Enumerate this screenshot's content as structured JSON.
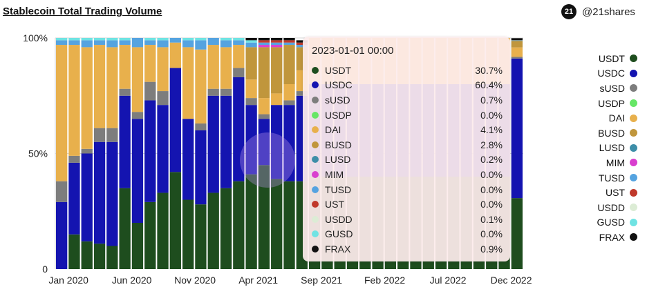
{
  "header": {
    "title": "Stablecoin Total Trading Volume",
    "brand_logo_text": "21",
    "brand_handle": "@21shares"
  },
  "tooltip": {
    "timestamp": "2023-01-01 00:00",
    "rows": [
      {
        "name": "USDT",
        "value": "30.7%"
      },
      {
        "name": "USDC",
        "value": "60.4%"
      },
      {
        "name": "sUSD",
        "value": "0.7%"
      },
      {
        "name": "USDP",
        "value": "0.0%"
      },
      {
        "name": "DAI",
        "value": "4.1%"
      },
      {
        "name": "BUSD",
        "value": "2.8%"
      },
      {
        "name": "LUSD",
        "value": "0.2%"
      },
      {
        "name": "MIM",
        "value": "0.0%"
      },
      {
        "name": "TUSD",
        "value": "0.0%"
      },
      {
        "name": "UST",
        "value": "0.0%"
      },
      {
        "name": "USDD",
        "value": "0.1%"
      },
      {
        "name": "GUSD",
        "value": "0.0%"
      },
      {
        "name": "FRAX",
        "value": "0.9%"
      }
    ]
  },
  "chart_data": {
    "type": "bar",
    "stacked": true,
    "normalized": true,
    "title": "Stablecoin Total Trading Volume",
    "y_tick_labels": [
      "0",
      "50%",
      "100%"
    ],
    "ylim": [
      0,
      100
    ],
    "x_tick_labels": [
      "Jan 2020",
      "Jun 2020",
      "Nov 2020",
      "Apr 2021",
      "Sep 2021",
      "Feb 2022",
      "Jul 2022",
      "Dec 2022"
    ],
    "categories": [
      "2020-01",
      "2020-02",
      "2020-03",
      "2020-04",
      "2020-05",
      "2020-06",
      "2020-07",
      "2020-08",
      "2020-09",
      "2020-10",
      "2020-11",
      "2020-12",
      "2021-01",
      "2021-02",
      "2021-03",
      "2021-04",
      "2021-05",
      "2021-06",
      "2021-07",
      "2021-08",
      "2021-09",
      "2021-10",
      "2021-11",
      "2021-12",
      "2022-01",
      "2022-02",
      "2022-03",
      "2022-04",
      "2022-05",
      "2022-06",
      "2022-07",
      "2022-08",
      "2022-09",
      "2022-10",
      "2022-11",
      "2022-12",
      "2023-01"
    ],
    "series": [
      {
        "name": "USDT",
        "color": "#1e4d1e",
        "values": [
          0,
          15,
          12,
          11,
          10,
          35,
          20,
          29,
          33,
          42,
          30,
          28,
          33,
          35,
          38,
          41,
          45,
          39,
          38,
          38,
          40,
          40,
          40,
          40,
          40,
          40,
          40,
          40,
          40,
          40,
          40,
          40,
          40,
          40,
          40,
          40,
          30.7
        ]
      },
      {
        "name": "USDC",
        "color": "#1414b0",
        "values": [
          29,
          31,
          38,
          44,
          45,
          40,
          45,
          44,
          38,
          45,
          35,
          32,
          42,
          40,
          45,
          30,
          20,
          32,
          33,
          37,
          40,
          40,
          40,
          40,
          40,
          40,
          40,
          40,
          40,
          40,
          40,
          40,
          40,
          40,
          40,
          40,
          60.4
        ]
      },
      {
        "name": "sUSD",
        "color": "#7d7d7d",
        "values": [
          9,
          3,
          2,
          6,
          6,
          3,
          3,
          8,
          6,
          0,
          0,
          3,
          3,
          3,
          4,
          3,
          2,
          0,
          2,
          2,
          0,
          0,
          0,
          0,
          0,
          0,
          0,
          0,
          0,
          0,
          0,
          0,
          0,
          0,
          0,
          0,
          0.7
        ]
      },
      {
        "name": "USDP",
        "color": "#66e666",
        "values": [
          0,
          0,
          0,
          0,
          0,
          0,
          0,
          0,
          0,
          0,
          0,
          0,
          0,
          0,
          0,
          0,
          0,
          0,
          0,
          0,
          0,
          0,
          0,
          0,
          0,
          0,
          0,
          0,
          0,
          0,
          0,
          0,
          0,
          0,
          0,
          0,
          0.0
        ]
      },
      {
        "name": "DAI",
        "color": "#e8b04c",
        "values": [
          59,
          48,
          44,
          36,
          35,
          19,
          28,
          16,
          19,
          11,
          31,
          32,
          19,
          18,
          10,
          8,
          7,
          5,
          7,
          9,
          20,
          20,
          20,
          20,
          20,
          20,
          20,
          20,
          20,
          20,
          20,
          20,
          20,
          20,
          20,
          20,
          4.1
        ]
      },
      {
        "name": "BUSD",
        "color": "#c0963c",
        "values": [
          0,
          0,
          0,
          0,
          0,
          0,
          0,
          0,
          0,
          0,
          0,
          0,
          0,
          0,
          0,
          14,
          22,
          20,
          17,
          10,
          0,
          0,
          0,
          0,
          0,
          0,
          0,
          0,
          0,
          0,
          0,
          0,
          0,
          0,
          0,
          0,
          2.8
        ]
      },
      {
        "name": "LUSD",
        "color": "#3d8ea8",
        "values": [
          0,
          0,
          0,
          0,
          0,
          0,
          0,
          0,
          0,
          0,
          0,
          0,
          0,
          0,
          0,
          0,
          0,
          0,
          0,
          0,
          0,
          0,
          0,
          0,
          0,
          0,
          0,
          0,
          0,
          0,
          0,
          0,
          0,
          0,
          0,
          0,
          0.2
        ]
      },
      {
        "name": "MIM",
        "color": "#d93fcf",
        "values": [
          0,
          0,
          0,
          0,
          0,
          0,
          0,
          0,
          0,
          0,
          0,
          0,
          0,
          0,
          0,
          0,
          1,
          1,
          0,
          0,
          0,
          0,
          0,
          0,
          0,
          0,
          0,
          0,
          0,
          0,
          0,
          0,
          0,
          0,
          0,
          0,
          0.0
        ]
      },
      {
        "name": "TUSD",
        "color": "#55a3e0",
        "values": [
          2,
          2,
          3,
          2,
          3,
          2,
          4,
          2,
          3,
          2,
          3,
          4,
          3,
          3,
          2,
          2,
          1,
          1,
          1,
          1,
          0,
          0,
          0,
          0,
          0,
          0,
          0,
          0,
          0,
          0,
          0,
          0,
          0,
          0,
          0,
          0,
          0.0
        ]
      },
      {
        "name": "UST",
        "color": "#c0392b",
        "values": [
          0,
          0,
          0,
          0,
          0,
          0,
          0,
          0,
          0,
          0,
          0,
          0,
          0,
          0,
          0,
          0,
          1,
          1,
          1,
          1,
          0,
          0,
          0,
          0,
          0,
          0,
          0,
          0,
          0,
          0,
          0,
          0,
          0,
          0,
          0,
          0,
          0.0
        ]
      },
      {
        "name": "USDD",
        "color": "#dcecd5",
        "values": [
          0,
          0,
          0,
          0,
          0,
          0,
          0,
          0,
          0,
          0,
          0,
          0,
          0,
          0,
          0,
          0,
          0,
          0,
          0,
          0,
          0,
          0,
          0,
          0,
          0,
          0,
          0,
          0,
          0,
          0,
          0,
          0,
          0,
          0,
          0,
          0,
          0.1
        ]
      },
      {
        "name": "GUSD",
        "color": "#6fe3e3",
        "values": [
          1,
          1,
          1,
          1,
          1,
          1,
          0,
          1,
          1,
          0,
          1,
          1,
          0,
          1,
          1,
          1,
          0,
          0,
          0,
          0,
          0,
          0,
          0,
          0,
          0,
          0,
          0,
          0,
          0,
          0,
          0,
          0,
          0,
          0,
          0,
          0,
          0.0
        ]
      },
      {
        "name": "FRAX",
        "color": "#111111",
        "values": [
          0,
          0,
          0,
          0,
          0,
          0,
          0,
          0,
          0,
          0,
          0,
          0,
          0,
          0,
          0,
          1,
          1,
          1,
          1,
          1,
          0,
          0,
          0,
          0,
          0,
          0,
          0,
          0,
          0,
          0,
          0,
          0,
          0,
          0,
          0,
          0,
          0.9
        ]
      }
    ],
    "grid": {
      "horizontal": true,
      "vertical": false
    },
    "legend_position": "right"
  }
}
